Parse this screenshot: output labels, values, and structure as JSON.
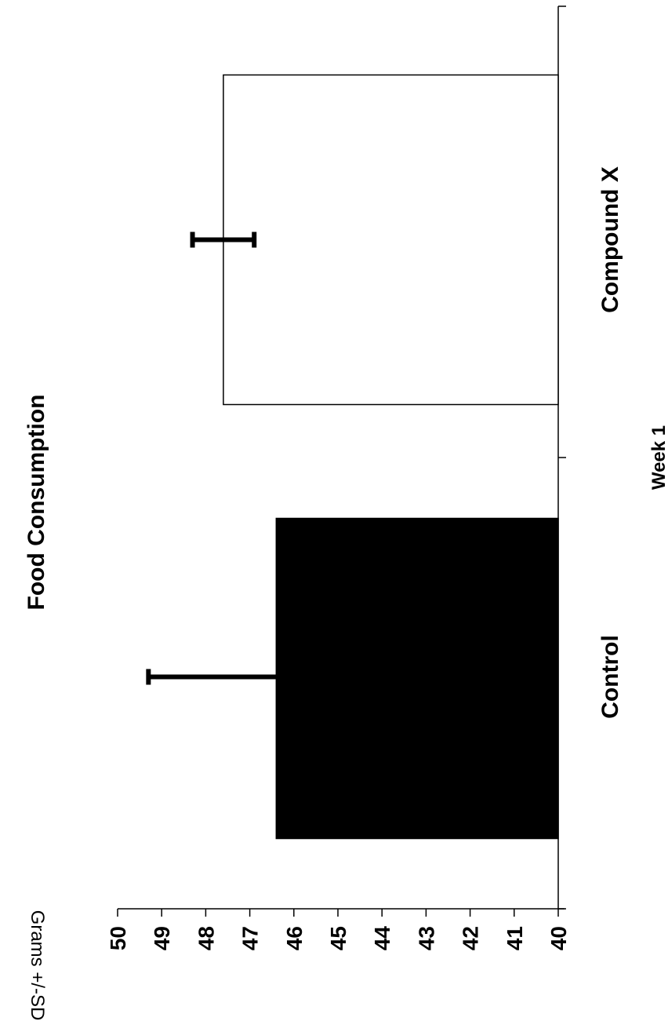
{
  "chart_data": {
    "type": "bar",
    "title": "Food Consumption",
    "xlabel": "Week 1",
    "ylabel": "Grams +/-SD",
    "categories": [
      "Control",
      "Compound X"
    ],
    "series": [
      {
        "values": [
          46.4,
          47.6
        ],
        "errors": [
          2.9,
          0.7
        ],
        "colors": [
          "#000000",
          "#ffffff"
        ]
      }
    ],
    "ylim": [
      40,
      50
    ],
    "yticks": [
      "40",
      "41",
      "42",
      "43",
      "44",
      "45",
      "46",
      "47",
      "48",
      "49",
      "50"
    ],
    "grid": false,
    "legend": "none",
    "orientation": "rotated-90-counterclockwise"
  }
}
